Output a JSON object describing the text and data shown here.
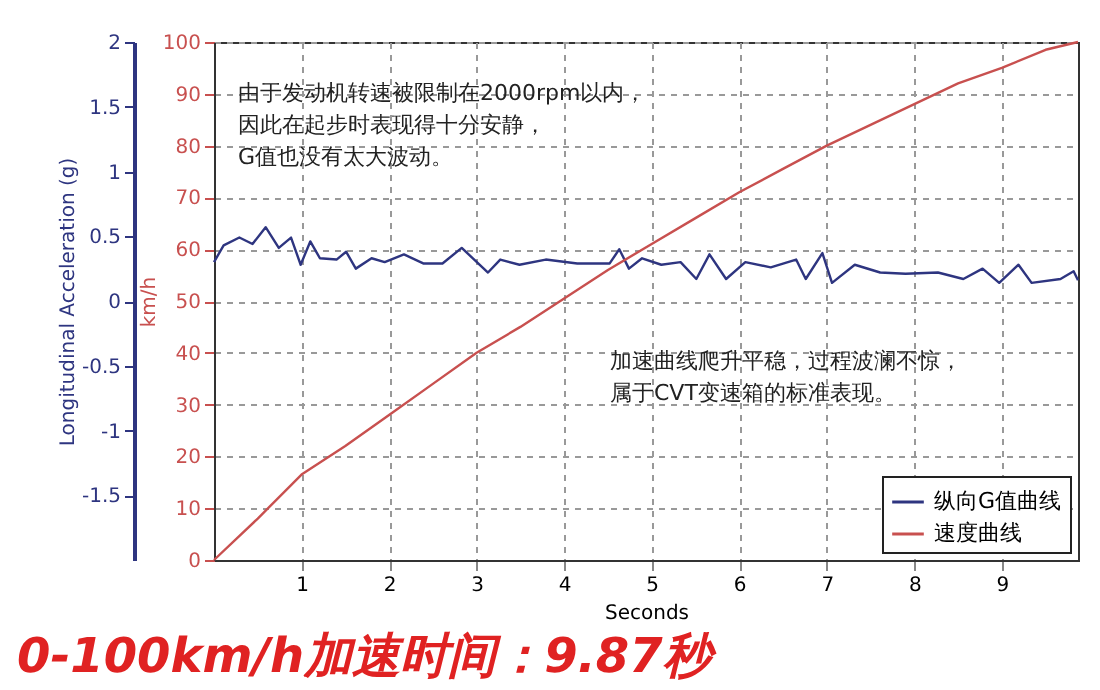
{
  "chart_data": {
    "type": "line",
    "title": "0-100km/h加速时间：9.87秒",
    "xlabel": "Seconds",
    "ylabel": "km/h",
    "y2label": "Longitudinal Acceleration (g)",
    "xlim": [
      0,
      9.87
    ],
    "xticks": [
      1,
      2,
      3,
      4,
      5,
      6,
      7,
      8,
      9
    ],
    "ylim": [
      0,
      100
    ],
    "yticks": [
      0,
      10,
      20,
      30,
      40,
      50,
      60,
      70,
      80,
      90,
      100
    ],
    "y2lim": [
      -2,
      2
    ],
    "y2ticks": [
      -1.5,
      -1,
      -0.5,
      0,
      0.5,
      1,
      1.5,
      2
    ],
    "grid": true,
    "legend": "bottom right",
    "marker": "none",
    "annotations": [
      "由于发动机转速被限制在2000rpm以内，",
      "因此在起步时表现得十分安静，",
      "G值也没有太大波动。",
      "加速曲线爬升平稳，过程波澜不惊，",
      "属于CVT变速箱的标准表现。"
    ],
    "series": [
      {
        "name": "纵向G值曲线",
        "color": "#2e3580",
        "axis": "y2",
        "x": [
          0,
          0.11,
          0.29,
          0.44,
          0.59,
          0.74,
          0.88,
          0.99,
          1.1,
          1.21,
          1.4,
          1.51,
          1.62,
          1.8,
          1.95,
          2.17,
          2.39,
          2.61,
          2.83,
          3.13,
          3.27,
          3.49,
          3.79,
          4.15,
          4.52,
          4.63,
          4.74,
          4.89,
          5.11,
          5.33,
          5.51,
          5.66,
          5.85,
          6.07,
          6.36,
          6.65,
          6.76,
          6.95,
          7.06,
          7.32,
          7.61,
          7.9,
          8.27,
          8.56,
          8.78,
          8.97,
          9.19,
          9.34,
          9.67,
          9.82,
          9.87
        ],
        "values": [
          0.3,
          0.43,
          0.49,
          0.44,
          0.57,
          0.41,
          0.49,
          0.28,
          0.46,
          0.33,
          0.32,
          0.38,
          0.25,
          0.33,
          0.3,
          0.36,
          0.29,
          0.29,
          0.41,
          0.22,
          0.32,
          0.28,
          0.32,
          0.29,
          0.29,
          0.4,
          0.25,
          0.33,
          0.28,
          0.3,
          0.17,
          0.36,
          0.17,
          0.3,
          0.26,
          0.32,
          0.17,
          0.37,
          0.14,
          0.28,
          0.22,
          0.21,
          0.22,
          0.17,
          0.25,
          0.14,
          0.28,
          0.14,
          0.17,
          0.23,
          0.16
        ]
      },
      {
        "name": "速度曲线",
        "color": "#c8504f",
        "x": [
          0,
          0.5,
          1,
          1.5,
          2,
          2.5,
          3,
          3.5,
          4,
          4.5,
          5,
          5.5,
          6,
          6.5,
          7,
          7.5,
          8,
          8.5,
          9,
          9.5,
          9.87
        ],
        "values": [
          0,
          8,
          16.5,
          22,
          28,
          34,
          40,
          45,
          50.5,
          56,
          61,
          66,
          71,
          75.5,
          80,
          84,
          88,
          92,
          95,
          98.5,
          100
        ]
      }
    ]
  }
}
